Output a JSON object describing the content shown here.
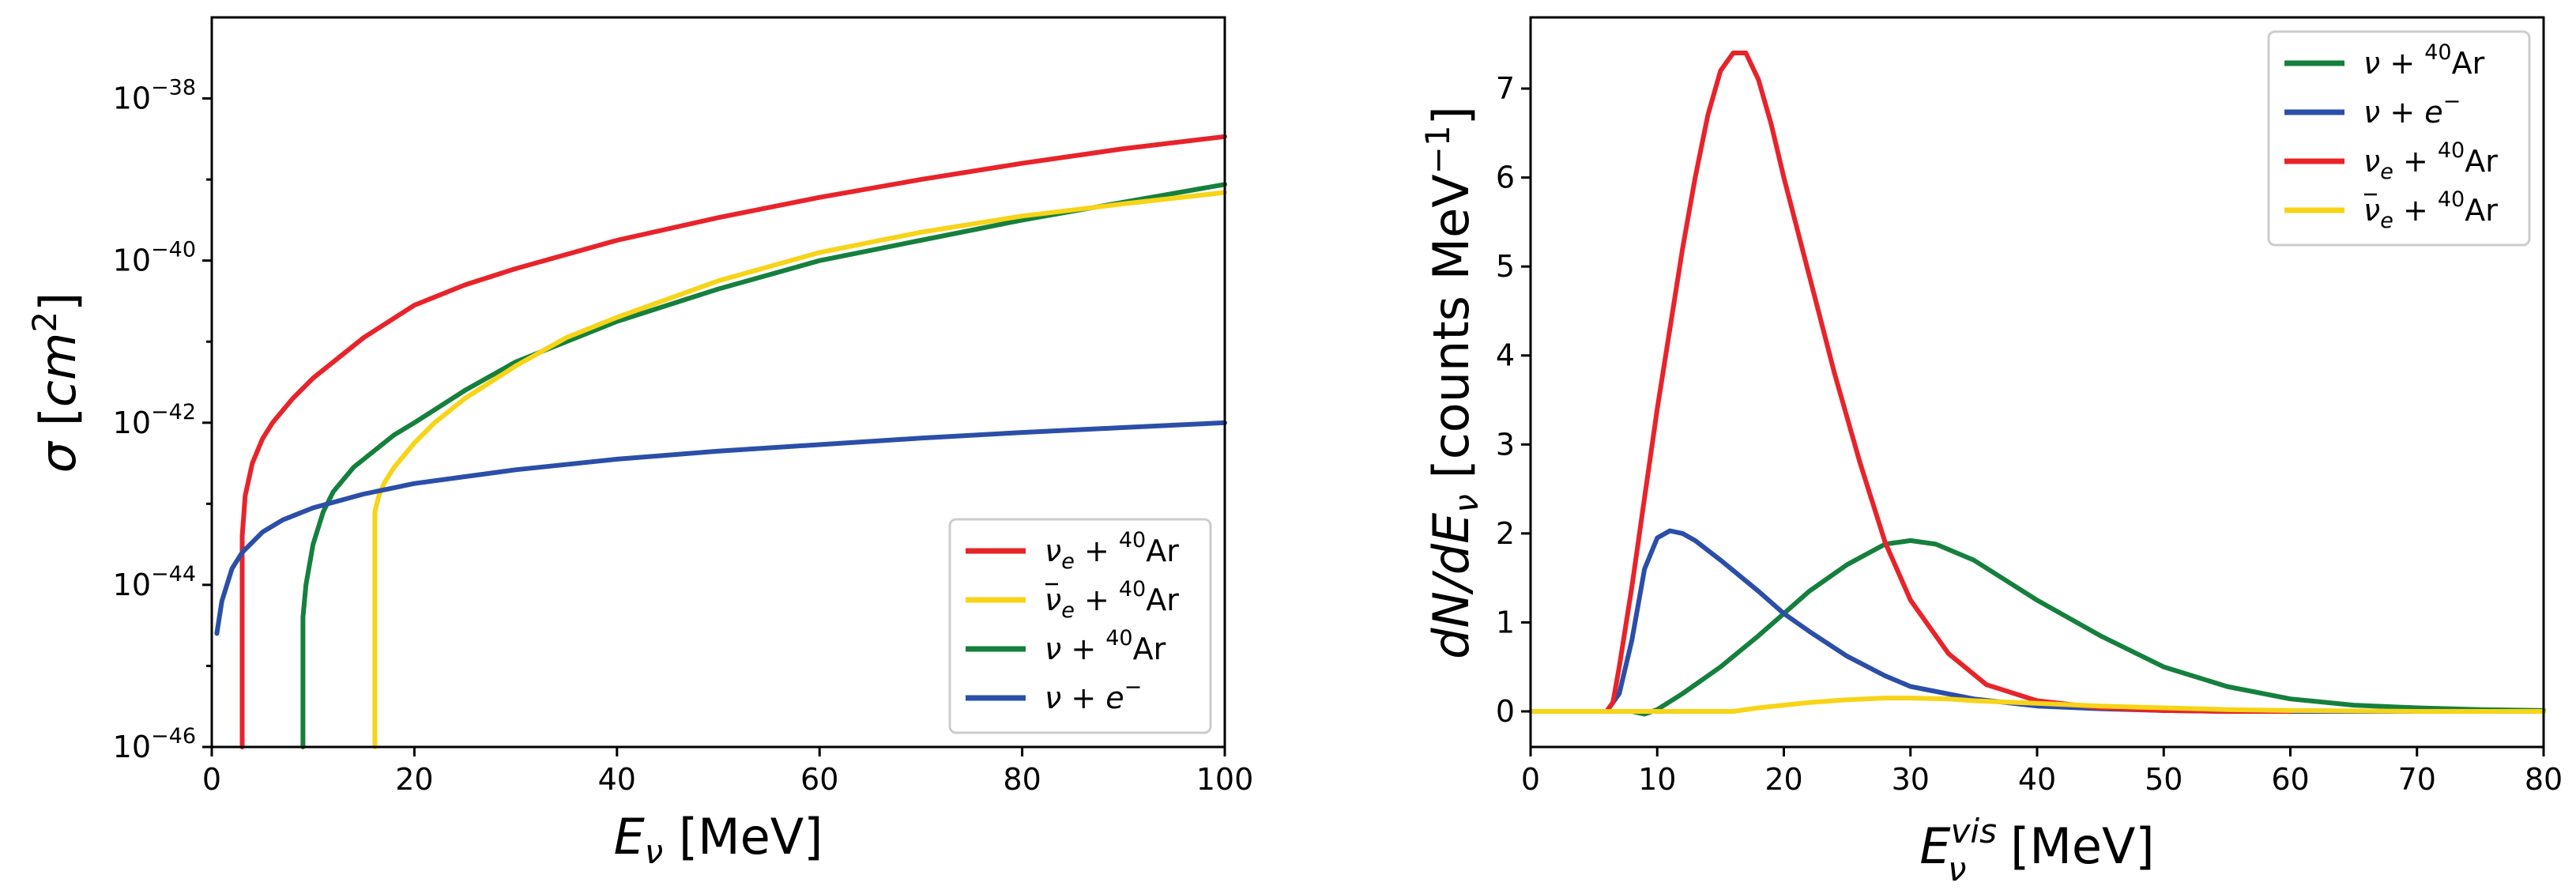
{
  "colors": {
    "nue_ar": "#e8232a",
    "nuebar_ar": "#f7d417",
    "nu_ar": "#15803d",
    "nu_e": "#2b4ea8"
  },
  "chart_data": [
    {
      "type": "line",
      "yscale": "log",
      "xlabel": "E_ν [MeV]",
      "ylabel": "σ [cm²]",
      "xlim": [
        0,
        100
      ],
      "ylim_log10": [
        -46,
        -37
      ],
      "xticks": [
        0,
        20,
        40,
        60,
        80,
        100
      ],
      "xtick_labels": [
        "0",
        "20",
        "40",
        "60",
        "80",
        "100"
      ],
      "ytick_labels": [
        {
          "base": "10",
          "exp": "−38"
        },
        {
          "base": "10",
          "exp": "−40"
        },
        {
          "base": "10",
          "exp": "−42"
        },
        {
          "base": "10",
          "exp": "−44"
        },
        {
          "base": "10",
          "exp": "−46"
        }
      ],
      "ytick_exponents": [
        -38,
        -40,
        -42,
        -44,
        -46
      ],
      "legend_position": "lower-right",
      "legend": [
        {
          "key": "nue_ar",
          "main": "ν",
          "sub": "e",
          "plus": " + ",
          "sup": "40",
          "tail": "Ar",
          "bar": false
        },
        {
          "key": "nuebar_ar",
          "main": "ν",
          "sub": "e",
          "plus": " + ",
          "sup": "40",
          "tail": "Ar",
          "bar": true
        },
        {
          "key": "nu_ar",
          "main": "ν",
          "sub": "",
          "plus": " + ",
          "sup": "40",
          "tail": "Ar",
          "bar": false
        },
        {
          "key": "nu_e",
          "main": "ν",
          "sub": "",
          "plus": " + e",
          "sup": "−",
          "tail": "",
          "bar": false
        }
      ],
      "series": [
        {
          "key": "nue_ar",
          "x": [
            3.0,
            3.0,
            3.3,
            4,
            5,
            6,
            8,
            10,
            15,
            20,
            25,
            30,
            40,
            50,
            60,
            70,
            80,
            90,
            100
          ],
          "log10y": [
            -46,
            -43.4,
            -42.9,
            -42.5,
            -42.2,
            -42.0,
            -41.7,
            -41.45,
            -40.95,
            -40.55,
            -40.3,
            -40.1,
            -39.75,
            -39.47,
            -39.22,
            -39.0,
            -38.8,
            -38.62,
            -38.47
          ]
        },
        {
          "key": "nuebar_ar",
          "x": [
            16.1,
            16.1,
            16.5,
            17,
            18,
            20,
            22,
            25,
            30,
            35,
            40,
            50,
            60,
            70,
            80,
            90,
            100
          ],
          "log10y": [
            -46,
            -43.1,
            -42.9,
            -42.75,
            -42.55,
            -42.25,
            -42.0,
            -41.7,
            -41.3,
            -40.95,
            -40.7,
            -40.25,
            -39.9,
            -39.65,
            -39.45,
            -39.3,
            -39.16
          ]
        },
        {
          "key": "nu_ar",
          "x": [
            9.0,
            9.0,
            9.3,
            10,
            11,
            12,
            14,
            16,
            18,
            20,
            25,
            30,
            40,
            50,
            60,
            70,
            80,
            90,
            100
          ],
          "log10y": [
            -46,
            -44.4,
            -44.0,
            -43.5,
            -43.1,
            -42.85,
            -42.55,
            -42.35,
            -42.15,
            -42.0,
            -41.6,
            -41.25,
            -40.75,
            -40.35,
            -40.0,
            -39.75,
            -39.5,
            -39.28,
            -39.06
          ]
        },
        {
          "key": "nu_e",
          "x": [
            0.5,
            1,
            2,
            3,
            5,
            7,
            10,
            15,
            20,
            30,
            40,
            50,
            60,
            70,
            80,
            90,
            100
          ],
          "log10y": [
            -44.6,
            -44.2,
            -43.8,
            -43.6,
            -43.35,
            -43.2,
            -43.05,
            -42.88,
            -42.75,
            -42.58,
            -42.45,
            -42.35,
            -42.27,
            -42.19,
            -42.12,
            -42.06,
            -42.0
          ]
        }
      ]
    },
    {
      "type": "line",
      "xlabel": "E_ν^vis [MeV]",
      "ylabel": "dN/dE_ν [counts MeV⁻¹]",
      "xlim": [
        0,
        80
      ],
      "ylim": [
        -0.4,
        7.8
      ],
      "xticks": [
        0,
        10,
        20,
        30,
        40,
        50,
        60,
        70,
        80
      ],
      "xtick_labels": [
        "0",
        "10",
        "20",
        "30",
        "40",
        "50",
        "60",
        "70",
        "80"
      ],
      "yticks": [
        0,
        1,
        2,
        3,
        4,
        5,
        6,
        7
      ],
      "ytick_labels": [
        "0",
        "1",
        "2",
        "3",
        "4",
        "5",
        "6",
        "7"
      ],
      "legend_position": "top-right",
      "legend": [
        {
          "key": "nu_ar",
          "main": "ν",
          "sub": "",
          "plus": " + ",
          "sup": "40",
          "tail": "Ar",
          "bar": false
        },
        {
          "key": "nu_e",
          "main": "ν",
          "sub": "",
          "plus": " + e",
          "sup": "−",
          "tail": "",
          "bar": false
        },
        {
          "key": "nue_ar",
          "main": "ν",
          "sub": "e",
          "plus": " + ",
          "sup": "40",
          "tail": "Ar",
          "bar": false
        },
        {
          "key": "nuebar_ar",
          "main": "ν",
          "sub": "e",
          "plus": " + ",
          "sup": "40",
          "tail": "Ar",
          "bar": true
        }
      ],
      "series": [
        {
          "key": "nu_ar",
          "x": [
            0,
            8,
            9,
            10,
            12,
            15,
            18,
            20,
            22,
            25,
            28,
            30,
            32,
            35,
            40,
            45,
            50,
            55,
            60,
            65,
            70,
            75,
            80
          ],
          "y": [
            0,
            0,
            -0.03,
            0.02,
            0.2,
            0.5,
            0.85,
            1.1,
            1.35,
            1.65,
            1.88,
            1.92,
            1.88,
            1.7,
            1.25,
            0.85,
            0.5,
            0.28,
            0.14,
            0.07,
            0.04,
            0.02,
            0.01
          ]
        },
        {
          "key": "nu_e",
          "x": [
            0,
            6,
            7,
            8,
            9,
            10,
            11,
            12,
            13,
            15,
            18,
            20,
            22,
            25,
            28,
            30,
            35,
            40,
            45,
            50,
            55,
            60,
            70,
            80
          ],
          "y": [
            0,
            0,
            0.2,
            0.8,
            1.6,
            1.95,
            2.03,
            2.0,
            1.92,
            1.7,
            1.35,
            1.1,
            0.9,
            0.62,
            0.4,
            0.28,
            0.14,
            0.06,
            0.03,
            0.01,
            0.0,
            0.0,
            0.0,
            0.0
          ]
        },
        {
          "key": "nue_ar",
          "x": [
            0,
            6,
            6.5,
            7,
            8,
            9,
            10,
            11,
            12,
            13,
            14,
            15,
            16,
            17,
            18,
            19,
            20,
            22,
            24,
            26,
            28,
            30,
            33,
            36,
            40,
            45,
            50,
            55,
            60
          ],
          "y": [
            0,
            0,
            0.1,
            0.5,
            1.4,
            2.4,
            3.4,
            4.3,
            5.2,
            6.0,
            6.7,
            7.2,
            7.4,
            7.4,
            7.1,
            6.6,
            6.0,
            4.9,
            3.8,
            2.8,
            1.9,
            1.25,
            0.65,
            0.3,
            0.12,
            0.04,
            0.01,
            0.0,
            0.0
          ]
        },
        {
          "key": "nuebar_ar",
          "x": [
            0,
            16,
            18,
            20,
            22,
            25,
            28,
            30,
            33,
            35,
            40,
            45,
            50,
            55,
            60,
            70,
            80
          ],
          "y": [
            0,
            0,
            0.04,
            0.07,
            0.1,
            0.13,
            0.15,
            0.15,
            0.14,
            0.12,
            0.09,
            0.06,
            0.04,
            0.02,
            0.01,
            0.0,
            0.0
          ]
        }
      ]
    }
  ]
}
